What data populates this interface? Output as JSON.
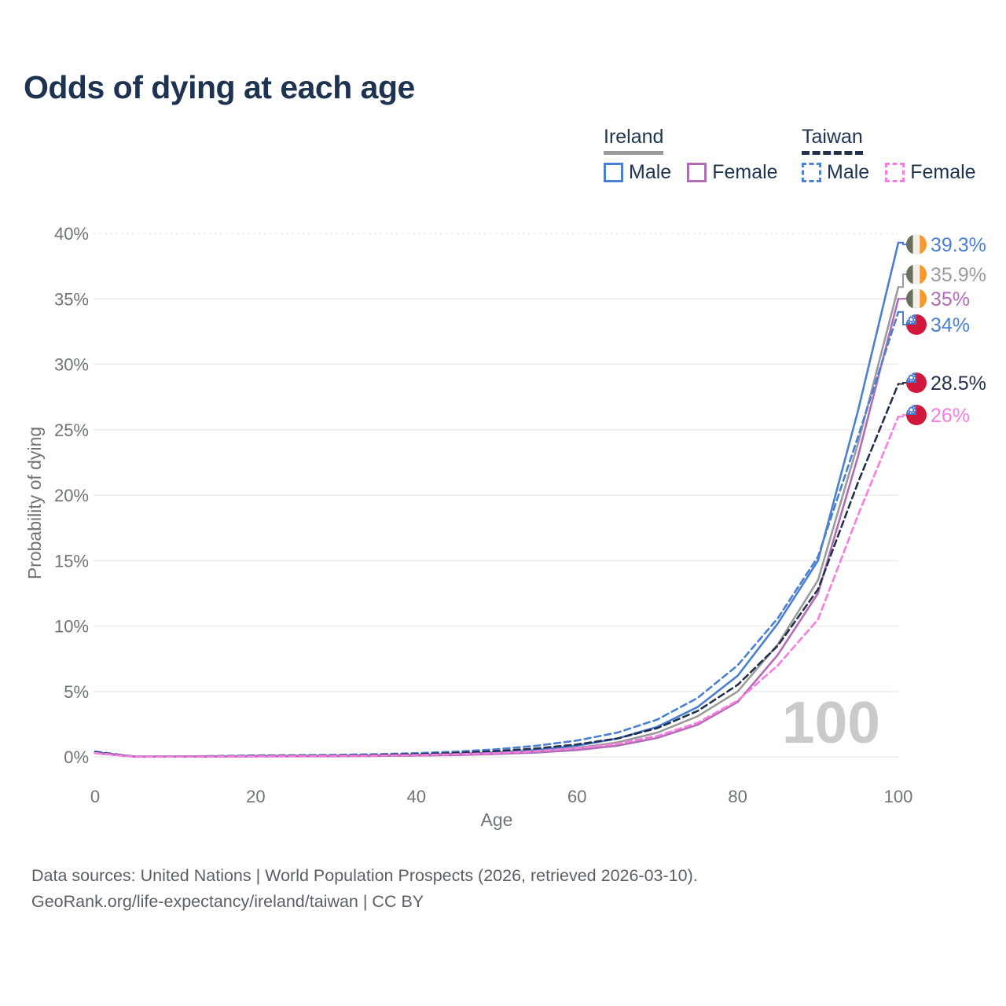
{
  "title": "Odds of dying at each age",
  "watermark": "100",
  "legend": {
    "groups": [
      {
        "label": "Ireland",
        "line_style": "solid",
        "underline_color": "#9b9b9b",
        "items": [
          {
            "label": "Male",
            "color": "#4a7fd4",
            "dash": false
          },
          {
            "label": "Female",
            "color": "#b16cb5",
            "dash": false
          }
        ]
      },
      {
        "label": "Taiwan",
        "line_style": "dashed",
        "underline_color": "#22304a",
        "items": [
          {
            "label": "Male",
            "color": "#4a7fd4",
            "dash": true
          },
          {
            "label": "Female",
            "color": "#fb7ce0",
            "dash": true
          }
        ]
      }
    ]
  },
  "footer": {
    "line1": "Data sources: United Nations | World Population Prospects (2026, retrieved 2026-03-10).",
    "line2": "GeoRank.org/life-expectancy/ireland/taiwan | CC BY"
  },
  "chart_data": {
    "type": "line",
    "title": "Odds of dying at each age",
    "xlabel": "Age",
    "ylabel": "Probability of dying",
    "unit": "%",
    "xlim": [
      0,
      100
    ],
    "ylim": [
      0,
      40
    ],
    "grid": "horizontal",
    "x_ticks": [
      0,
      20,
      40,
      60,
      80,
      100
    ],
    "y_ticks": [
      {
        "value": 0,
        "label": "0%"
      },
      {
        "value": 5,
        "label": "5%"
      },
      {
        "value": 10,
        "label": "10%"
      },
      {
        "value": 15,
        "label": "15%"
      },
      {
        "value": 20,
        "label": "20%"
      },
      {
        "value": 25,
        "label": "25%"
      },
      {
        "value": 30,
        "label": "30%"
      },
      {
        "value": 35,
        "label": "35%"
      },
      {
        "value": 40,
        "label": "40%"
      }
    ],
    "x": [
      0,
      5,
      10,
      15,
      20,
      25,
      30,
      35,
      40,
      45,
      50,
      55,
      60,
      65,
      70,
      75,
      80,
      85,
      90,
      95,
      100
    ],
    "series": [
      {
        "name": "Ireland Male",
        "country": "Ireland",
        "sex": "Male",
        "color": "#4a7fd4",
        "dash": false,
        "flag": "ireland",
        "end_label": "39.3%",
        "end_value": 39.3,
        "label_color": "#4a7fd4",
        "values": [
          0.35,
          0.02,
          0.02,
          0.04,
          0.07,
          0.08,
          0.09,
          0.11,
          0.15,
          0.22,
          0.33,
          0.52,
          0.85,
          1.4,
          2.3,
          3.8,
          6.2,
          10.2,
          15.0,
          26.5,
          39.3
        ]
      },
      {
        "name": "Ireland",
        "country": "Ireland",
        "sex": "Both",
        "color": "#9b9b9b",
        "dash": false,
        "flag": "ireland",
        "end_label": "35.9%",
        "end_value": 35.9,
        "label_color": "#9b9b9b",
        "values": [
          0.3,
          0.02,
          0.02,
          0.03,
          0.05,
          0.06,
          0.07,
          0.09,
          0.12,
          0.18,
          0.27,
          0.42,
          0.68,
          1.1,
          1.85,
          3.1,
          5.0,
          8.6,
          13.5,
          24.0,
          35.9
        ]
      },
      {
        "name": "Ireland Female",
        "country": "Ireland",
        "sex": "Female",
        "color": "#b16cb5",
        "dash": false,
        "flag": "ireland",
        "end_label": "35%",
        "end_value": 35,
        "label_color": "#b16cb5",
        "values": [
          0.28,
          0.01,
          0.02,
          0.02,
          0.03,
          0.04,
          0.05,
          0.07,
          0.1,
          0.14,
          0.22,
          0.33,
          0.52,
          0.85,
          1.45,
          2.45,
          4.2,
          7.8,
          12.5,
          23.0,
          35.0
        ]
      },
      {
        "name": "Taiwan Male",
        "country": "Taiwan",
        "sex": "Male",
        "color": "#4a7fd4",
        "dash": true,
        "flag": "taiwan",
        "end_label": "34%",
        "end_value": 34,
        "label_color": "#4a7fd4",
        "values": [
          0.4,
          0.02,
          0.03,
          0.06,
          0.1,
          0.12,
          0.15,
          0.2,
          0.28,
          0.4,
          0.58,
          0.85,
          1.25,
          1.85,
          2.85,
          4.5,
          7.0,
          10.6,
          15.3,
          24.5,
          34.0
        ]
      },
      {
        "name": "Taiwan",
        "country": "Taiwan",
        "sex": "Both",
        "color": "#22304a",
        "dash": true,
        "flag": "taiwan",
        "end_label": "28.5%",
        "end_value": 28.5,
        "label_color": "#22304a",
        "values": [
          0.35,
          0.02,
          0.02,
          0.05,
          0.08,
          0.09,
          0.11,
          0.15,
          0.21,
          0.3,
          0.44,
          0.64,
          0.95,
          1.4,
          2.2,
          3.5,
          5.5,
          8.5,
          12.8,
          21.0,
          28.5
        ]
      },
      {
        "name": "Taiwan Female",
        "country": "Taiwan",
        "sex": "Female",
        "color": "#fb7ce0",
        "dash": true,
        "flag": "taiwan",
        "end_label": "26%",
        "end_value": 26,
        "label_color": "#fb7ce0",
        "values": [
          0.3,
          0.01,
          0.02,
          0.03,
          0.05,
          0.06,
          0.08,
          0.1,
          0.14,
          0.2,
          0.29,
          0.44,
          0.66,
          1.0,
          1.6,
          2.6,
          4.3,
          7.0,
          10.5,
          18.5,
          26.0
        ]
      }
    ],
    "flag_colors": {
      "ireland_green": "#69705e",
      "ireland_white": "#f2efe9",
      "ireland_orange": "#f8982c",
      "taiwan_red": "#d0173c",
      "taiwan_blue": "#4576cb"
    }
  }
}
